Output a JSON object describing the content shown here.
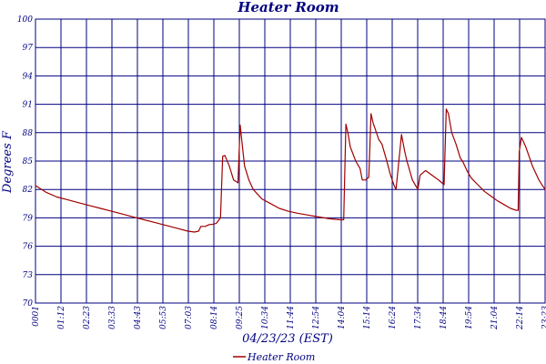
{
  "chart_data": {
    "type": "line",
    "title": "Heater Room",
    "xlabel": "04/23/23 (EST)",
    "ylabel": "Degrees F",
    "y_tick_labels": [
      "100",
      "97",
      "94",
      "91",
      "88",
      "85",
      "82",
      "79",
      "76",
      "73",
      "70"
    ],
    "ylim": [
      70,
      100
    ],
    "x_tick_labels": [
      "0001",
      "01:12",
      "02:23",
      "03:33",
      "04:43",
      "05:53",
      "07:03",
      "08:14",
      "09:25",
      "10:34",
      "11:44",
      "12:54",
      "14:04",
      "15:14",
      "16:24",
      "17:34",
      "18:44",
      "19:54",
      "21:04",
      "22:14",
      "23:23"
    ],
    "x_range_hours": [
      0.0167,
      23.383
    ],
    "grid": true,
    "legend_position": "bottom-center",
    "colors": {
      "line": "#a00000",
      "grid": "#000080",
      "text": "#000080"
    },
    "series": [
      {
        "name": "Heater Room",
        "x": [
          0.02,
          0.5,
          1.0,
          1.5,
          2.0,
          2.5,
          3.0,
          3.5,
          4.0,
          4.5,
          5.0,
          5.5,
          6.0,
          6.5,
          7.0,
          7.3,
          7.5,
          7.6,
          7.8,
          7.9,
          8.0,
          8.1,
          8.3,
          8.5,
          8.6,
          8.7,
          8.9,
          9.1,
          9.3,
          9.4,
          9.6,
          9.8,
          10.0,
          10.4,
          10.8,
          11.2,
          11.6,
          12.0,
          12.5,
          13.0,
          13.5,
          14.0,
          14.15,
          14.25,
          14.35,
          14.45,
          14.7,
          14.9,
          15.0,
          15.15,
          15.3,
          15.4,
          15.5,
          15.65,
          15.75,
          15.9,
          16.1,
          16.3,
          16.45,
          16.55,
          16.8,
          16.95,
          17.05,
          17.3,
          17.55,
          17.65,
          17.9,
          18.2,
          18.5,
          18.75,
          18.85,
          18.95,
          19.1,
          19.3,
          19.5,
          19.6,
          19.8,
          20.0,
          20.3,
          20.6,
          20.9,
          21.2,
          21.5,
          21.8,
          22.05,
          22.15,
          22.2,
          22.3,
          22.5,
          22.8,
          23.1,
          23.38
        ],
        "values": [
          82.4,
          81.7,
          81.2,
          80.9,
          80.6,
          80.3,
          80.0,
          79.7,
          79.4,
          79.1,
          78.8,
          78.5,
          78.2,
          77.9,
          77.6,
          77.5,
          77.6,
          78.1,
          78.1,
          78.2,
          78.3,
          78.3,
          78.4,
          79.0,
          85.5,
          85.6,
          84.5,
          83.0,
          82.7,
          88.8,
          84.5,
          83.0,
          82.0,
          81.0,
          80.5,
          80.0,
          79.7,
          79.5,
          79.3,
          79.1,
          78.9,
          78.8,
          78.8,
          88.9,
          87.9,
          86.5,
          85.0,
          84.2,
          83.0,
          83.0,
          83.3,
          90.0,
          89.0,
          88.0,
          87.3,
          86.8,
          85.2,
          83.5,
          82.5,
          82.0,
          87.8,
          86.0,
          85.0,
          83.0,
          82.0,
          83.5,
          84.0,
          83.5,
          83.0,
          82.5,
          90.5,
          90.0,
          88.0,
          86.8,
          85.3,
          85.0,
          84.0,
          83.2,
          82.5,
          81.8,
          81.3,
          80.8,
          80.4,
          80.0,
          79.8,
          79.8,
          86.0,
          87.5,
          86.5,
          84.5,
          83.0,
          82.0
        ]
      }
    ]
  }
}
